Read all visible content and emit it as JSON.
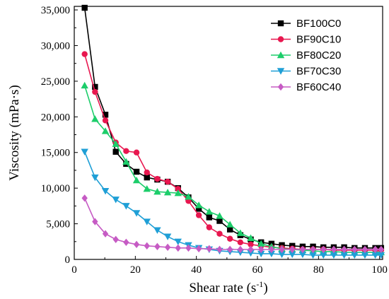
{
  "chart_data": {
    "type": "line",
    "xlabel": "Shear rate (s",
    "xlabel_sup": "-1",
    "xlabel_end": ")",
    "ylabel": "Viscosity (mPa·s)",
    "xlim": [
      0,
      101
    ],
    "ylim": [
      0,
      35500
    ],
    "x_ticks": [
      0,
      20,
      40,
      60,
      80,
      100
    ],
    "y_ticks": [
      0,
      5000,
      10000,
      15000,
      20000,
      25000,
      30000,
      35000
    ],
    "x_tick_labels": [
      "0",
      "20",
      "40",
      "60",
      "80",
      "100"
    ],
    "y_tick_labels": [
      "0",
      "5,000",
      "10,000",
      "15,000",
      "20,000",
      "25,000",
      "30,000",
      "35,000"
    ],
    "grid": false,
    "legend_position": "top-right",
    "x": [
      3.4,
      6.8,
      10.2,
      13.6,
      17.0,
      20.4,
      23.8,
      27.2,
      30.6,
      34.0,
      37.4,
      40.8,
      44.2,
      47.6,
      51.0,
      54.4,
      57.8,
      61.2,
      64.6,
      68.0,
      71.4,
      74.8,
      78.2,
      81.6,
      85.0,
      88.4,
      91.8,
      95.2,
      98.6,
      100.5
    ],
    "series": [
      {
        "name": "BF100C0",
        "color": "#000000",
        "marker": "square",
        "values": [
          35300,
          24200,
          20300,
          15100,
          13400,
          12300,
          11500,
          11200,
          10900,
          10000,
          8700,
          7100,
          5900,
          5400,
          4200,
          3400,
          2800,
          2400,
          2200,
          2000,
          1900,
          1800,
          1800,
          1700,
          1700,
          1700,
          1600,
          1600,
          1600,
          1600
        ]
      },
      {
        "name": "BF90C10",
        "color": "#e8174f",
        "marker": "circle",
        "values": [
          28800,
          23500,
          19500,
          16400,
          15200,
          15000,
          12200,
          11300,
          10900,
          9900,
          8200,
          6200,
          4500,
          3600,
          2900,
          2400,
          2100,
          1900,
          1700,
          1600,
          1500,
          1400,
          1400,
          1400,
          1300,
          1300,
          1300,
          1300,
          1300,
          1300
        ]
      },
      {
        "name": "BF80C20",
        "color": "#1ccd6a",
        "marker": "triangle-up",
        "values": [
          24400,
          19700,
          18000,
          16200,
          13700,
          11100,
          9900,
          9500,
          9400,
          9300,
          8800,
          7600,
          6700,
          6100,
          4900,
          3700,
          3000,
          2200,
          1800,
          1500,
          1400,
          1300,
          1200,
          1100,
          1100,
          1000,
          1000,
          1000,
          1000,
          1000
        ]
      },
      {
        "name": "BF70C30",
        "color": "#1f9fd6",
        "marker": "triangle-down",
        "values": [
          15100,
          11500,
          9600,
          8400,
          7500,
          6500,
          5300,
          4100,
          3200,
          2500,
          2000,
          1600,
          1400,
          1200,
          1100,
          1000,
          900,
          800,
          800,
          700,
          700,
          700,
          600,
          600,
          600,
          600,
          600,
          600,
          600,
          600
        ]
      },
      {
        "name": "BF60C40",
        "color": "#c65bc4",
        "marker": "diamond",
        "values": [
          8600,
          5300,
          3600,
          2800,
          2400,
          2100,
          1900,
          1800,
          1700,
          1600,
          1600,
          1500,
          1500,
          1400,
          1400,
          1400,
          1400,
          1400,
          1400,
          1400,
          1400,
          1400,
          1400,
          1400,
          1400,
          1400,
          1400,
          1400,
          1400,
          1400
        ]
      }
    ]
  }
}
